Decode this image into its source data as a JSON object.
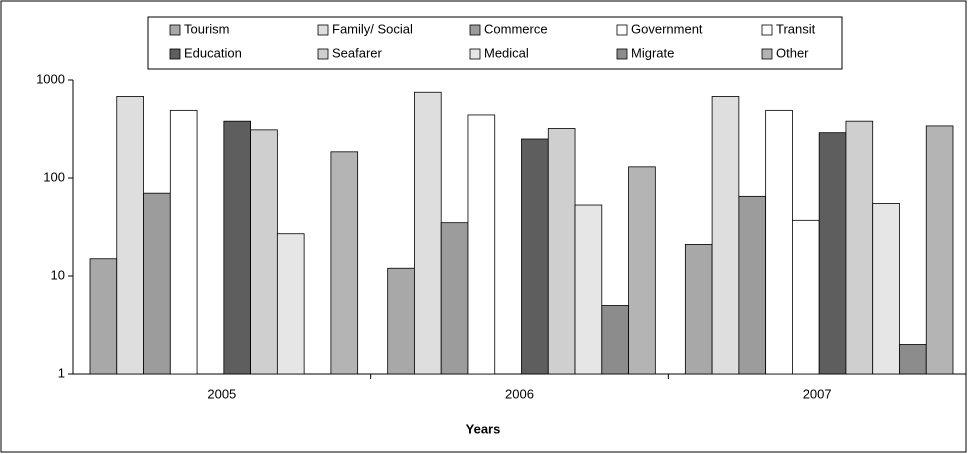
{
  "chart_data": {
    "type": "bar",
    "x_label": "Years",
    "categories": [
      "2005",
      "2006",
      "2007"
    ],
    "series": [
      {
        "name": "Tourism",
        "color": "#a8a8a8",
        "values": [
          15,
          12,
          21
        ]
      },
      {
        "name": "Family/ Social",
        "color": "#dedede",
        "values": [
          680,
          750,
          680
        ]
      },
      {
        "name": "Commerce",
        "color": "#9c9c9c",
        "values": [
          70,
          35,
          65
        ]
      },
      {
        "name": "Government",
        "color": "#ffffff",
        "values": [
          490,
          440,
          490
        ]
      },
      {
        "name": "Transit",
        "color": "#ffffff",
        "values": [
          null,
          null,
          37
        ]
      },
      {
        "name": "Education",
        "color": "#5e5e5e",
        "values": [
          380,
          250,
          290
        ]
      },
      {
        "name": "Seafarer",
        "color": "#cfcfcf",
        "values": [
          310,
          320,
          380
        ]
      },
      {
        "name": "Medical",
        "color": "#e6e6e6",
        "values": [
          27,
          53,
          55
        ]
      },
      {
        "name": "Migrate",
        "color": "#8c8c8c",
        "values": [
          null,
          5,
          2
        ]
      },
      {
        "name": "Other",
        "color": "#b4b4b4",
        "values": [
          185,
          130,
          340
        ]
      }
    ],
    "ylim": [
      1,
      1000
    ],
    "yticks": [
      1,
      10,
      100,
      1000
    ],
    "log_scale": true,
    "grid": false
  }
}
